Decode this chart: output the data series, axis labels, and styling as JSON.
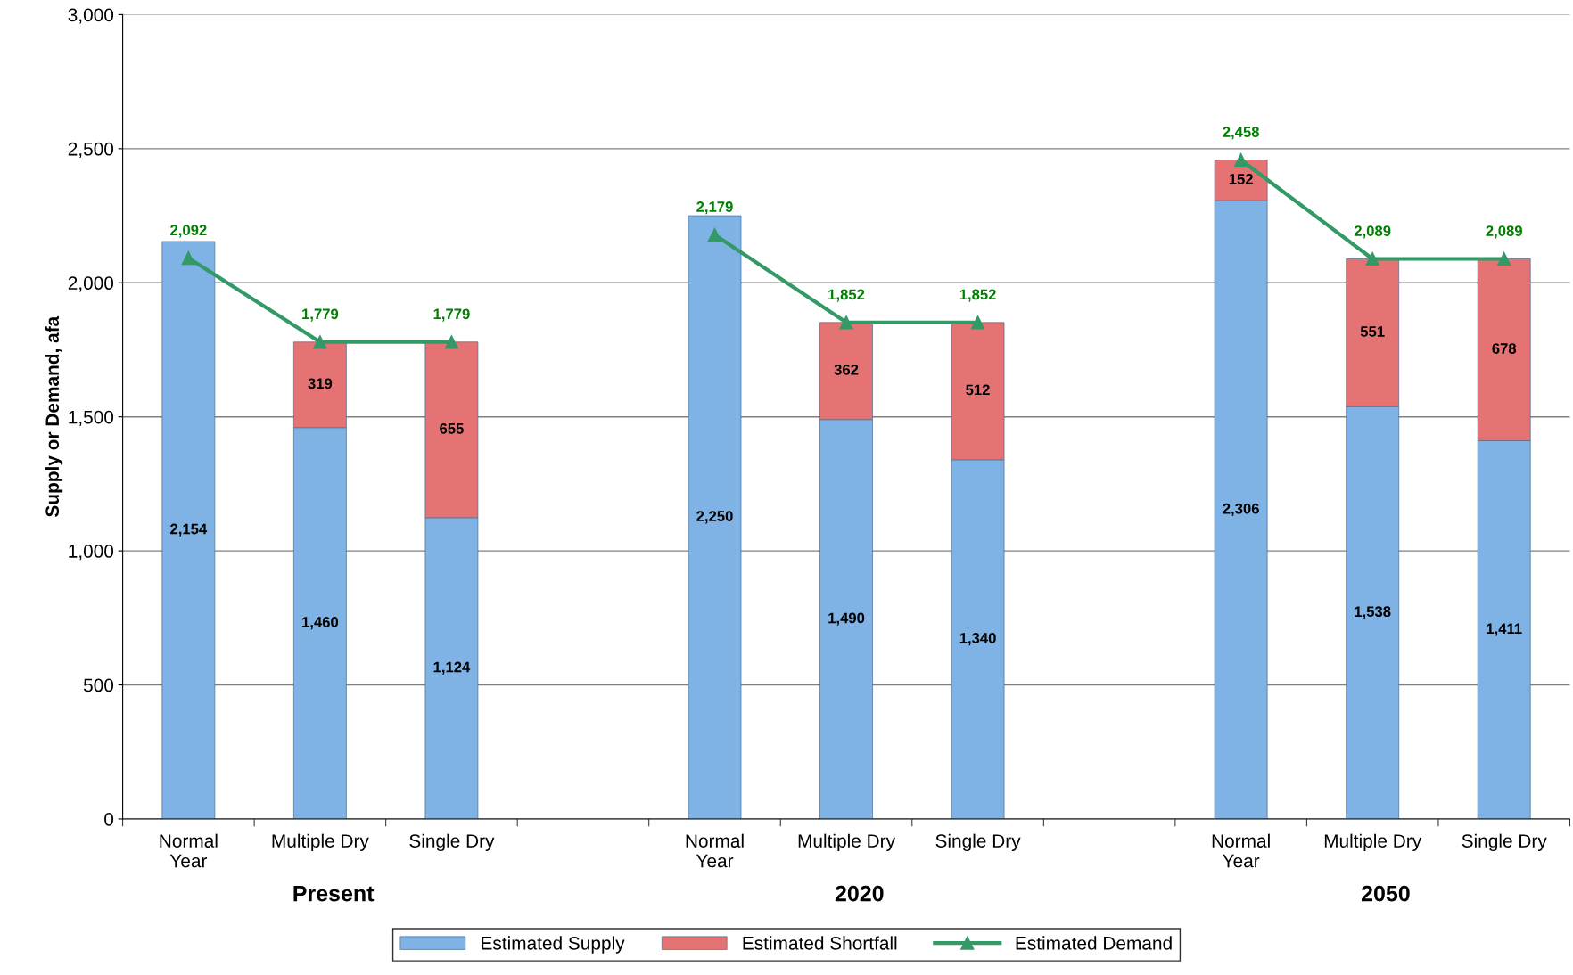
{
  "chart_data": {
    "type": "bar",
    "stacked": true,
    "ylabel": "Supply or Demand, afa",
    "categories": [
      "Normal\nYear",
      "Multiple Dry",
      "Single Dry",
      null,
      "Normal\nYear",
      "Multiple Dry",
      "Single Dry",
      null,
      "Normal\nYear",
      "Multiple Dry",
      "Single Dry"
    ],
    "series": [
      {
        "name": "Estimated Supply",
        "color": "#7fb3e6",
        "values": [
          2154,
          1460,
          1124,
          null,
          2250,
          1490,
          1340,
          null,
          2306,
          1538,
          1411
        ],
        "value_labels": [
          "2,154",
          "1,460",
          "1,124",
          null,
          "2,250",
          "1,490",
          "1,340",
          null,
          "2,306",
          "1,538",
          "1,411"
        ]
      },
      {
        "name": "Estimated Shortfall",
        "color": "#e57373",
        "values": [
          null,
          319,
          655,
          null,
          null,
          362,
          512,
          null,
          152,
          551,
          678
        ],
        "value_labels": [
          null,
          "319",
          "655",
          null,
          null,
          "362",
          "512",
          null,
          "152",
          "551",
          "678"
        ]
      },
      {
        "name": "Estimated Demand",
        "type": "line",
        "color": "#339966",
        "marker": "triangle",
        "values": [
          2092,
          1779,
          1779,
          null,
          2179,
          1852,
          1852,
          null,
          2458,
          2089,
          2089
        ],
        "value_labels": [
          "2,092",
          "1,779",
          "1,779",
          null,
          "2,179",
          "1,852",
          "1,852",
          null,
          "2,458",
          "2,089",
          "2,089"
        ]
      }
    ],
    "ylim": [
      0,
      3000
    ],
    "yticks": [
      0,
      {
        "value": 500,
        "label": "500"
      },
      {
        "value": 1000,
        "label": "1,000"
      },
      {
        "value": 1500,
        "label": "1,500"
      },
      {
        "value": 2000,
        "label": "2,000"
      },
      {
        "value": 2500,
        "label": "2,500"
      },
      {
        "value": 3000,
        "label": "3,000"
      }
    ],
    "grid": "y",
    "legend": "bottom",
    "annotations": [
      "Present",
      "2020",
      "2050"
    ]
  }
}
